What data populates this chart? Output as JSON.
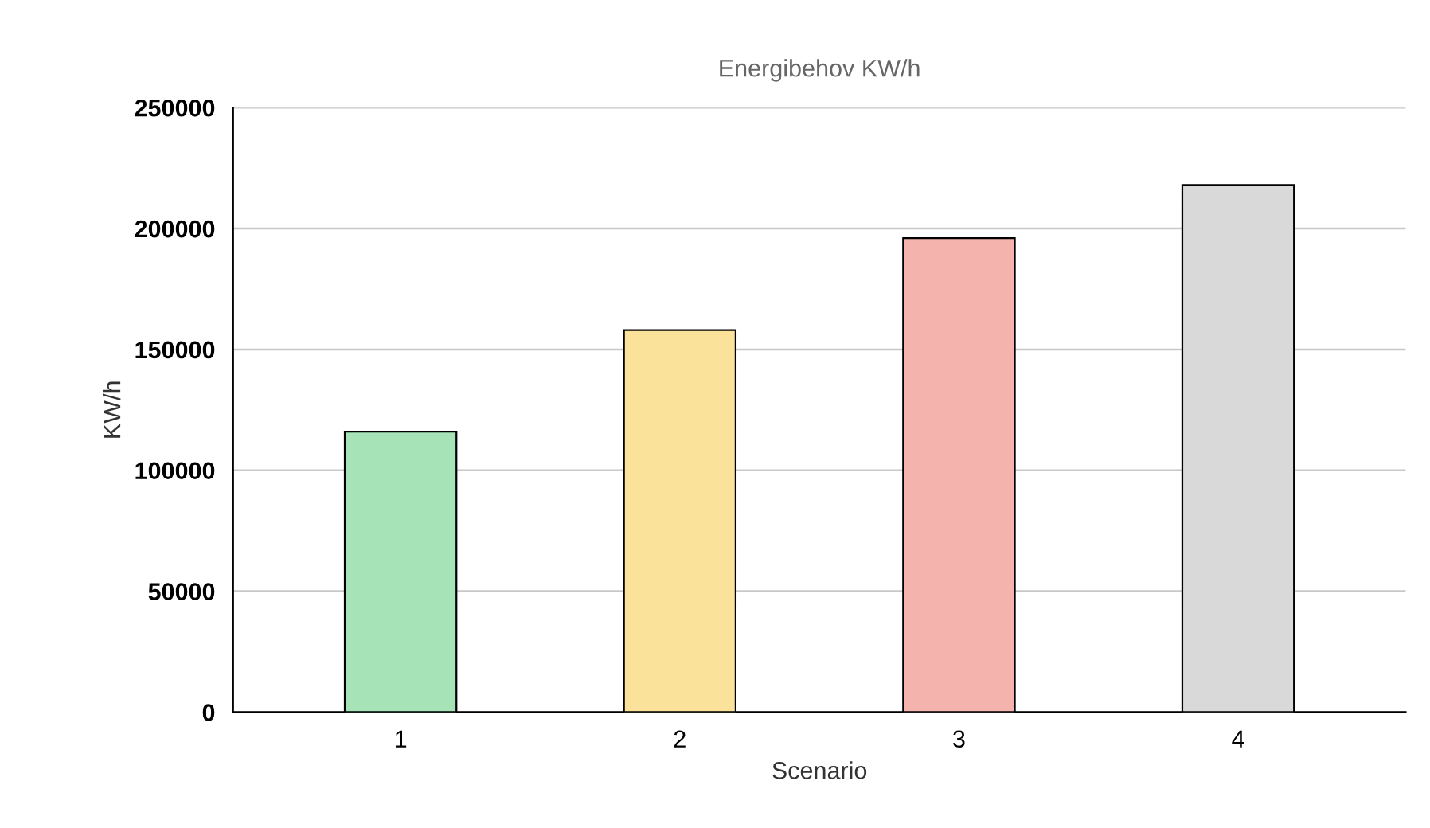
{
  "chart_data": {
    "type": "bar",
    "title": "Energibehov KW/h",
    "xlabel": "Scenario",
    "ylabel": "KW/h",
    "categories": [
      "1",
      "2",
      "3",
      "4"
    ],
    "values": [
      116000,
      158000,
      196000,
      218000
    ],
    "colors": [
      "#a6e3b7",
      "#fbe29b",
      "#f5b3ae",
      "#d9d9d9"
    ],
    "ylim": [
      0,
      250000
    ],
    "yticks": [
      0,
      50000,
      100000,
      150000,
      200000,
      250000
    ],
    "grid": "y",
    "legend": false
  }
}
